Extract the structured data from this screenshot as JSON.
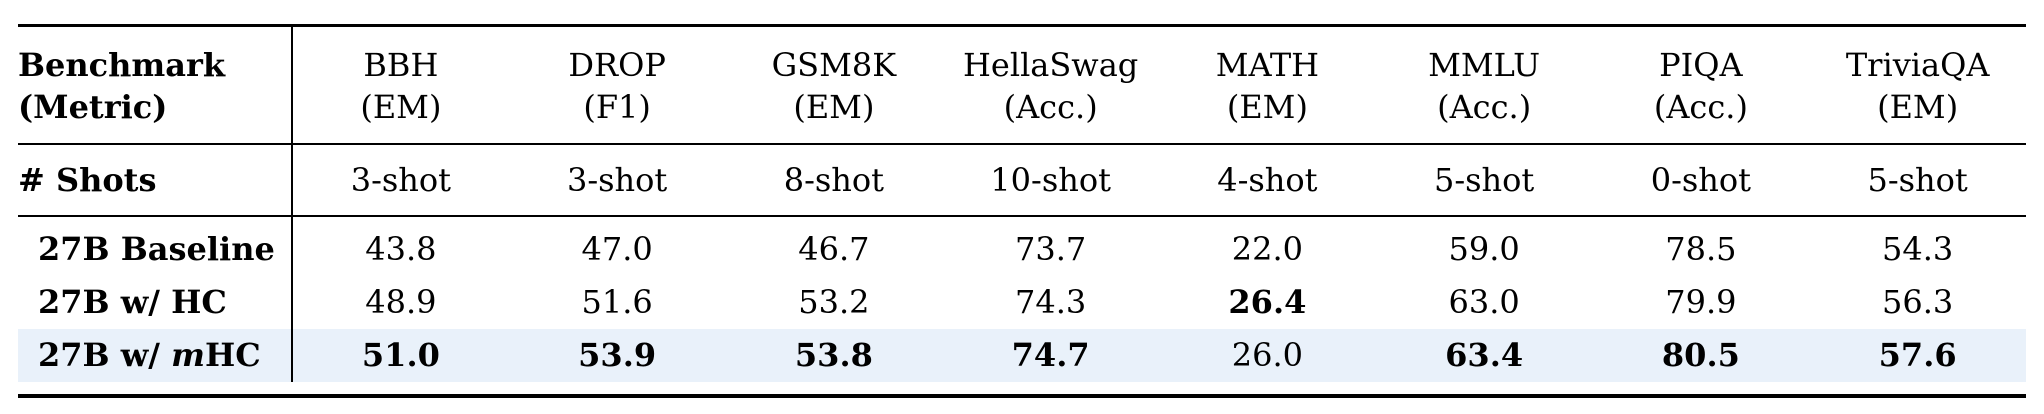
{
  "highlight_color": "#e9f1fa",
  "text_color": "#000000",
  "table": {
    "corner": {
      "line1": "Benchmark",
      "line2": "(Metric)"
    },
    "shots_row_label": "# Shots",
    "columns": [
      {
        "name": "BBH",
        "metric": "(EM)",
        "shots": "3-shot"
      },
      {
        "name": "DROP",
        "metric": "(F1)",
        "shots": "3-shot"
      },
      {
        "name": "GSM8K",
        "metric": "(EM)",
        "shots": "8-shot"
      },
      {
        "name": "HellaSwag",
        "metric": "(Acc.)",
        "shots": "10-shot"
      },
      {
        "name": "MATH",
        "metric": "(EM)",
        "shots": "4-shot"
      },
      {
        "name": "MMLU",
        "metric": "(Acc.)",
        "shots": "5-shot"
      },
      {
        "name": "PIQA",
        "metric": "(Acc.)",
        "shots": "0-shot"
      },
      {
        "name": "TriviaQA",
        "metric": "(EM)",
        "shots": "5-shot"
      }
    ],
    "rows": [
      {
        "label_prefix": "27B Baseline",
        "label_italic": "",
        "label_suffix": "",
        "values": [
          "43.8",
          "47.0",
          "46.7",
          "73.7",
          "22.0",
          "59.0",
          "78.5",
          "54.3"
        ],
        "bold": [
          false,
          false,
          false,
          false,
          false,
          false,
          false,
          false
        ],
        "highlight": false
      },
      {
        "label_prefix": "27B w/ HC",
        "label_italic": "",
        "label_suffix": "",
        "values": [
          "48.9",
          "51.6",
          "53.2",
          "74.3",
          "26.4",
          "63.0",
          "79.9",
          "56.3"
        ],
        "bold": [
          false,
          false,
          false,
          false,
          true,
          false,
          false,
          false
        ],
        "highlight": false
      },
      {
        "label_prefix": "27B w/ ",
        "label_italic": "m",
        "label_suffix": "HC",
        "values": [
          "51.0",
          "53.9",
          "53.8",
          "74.7",
          "26.0",
          "63.4",
          "80.5",
          "57.6"
        ],
        "bold": [
          true,
          true,
          true,
          true,
          false,
          true,
          true,
          true
        ],
        "highlight": true
      }
    ]
  }
}
